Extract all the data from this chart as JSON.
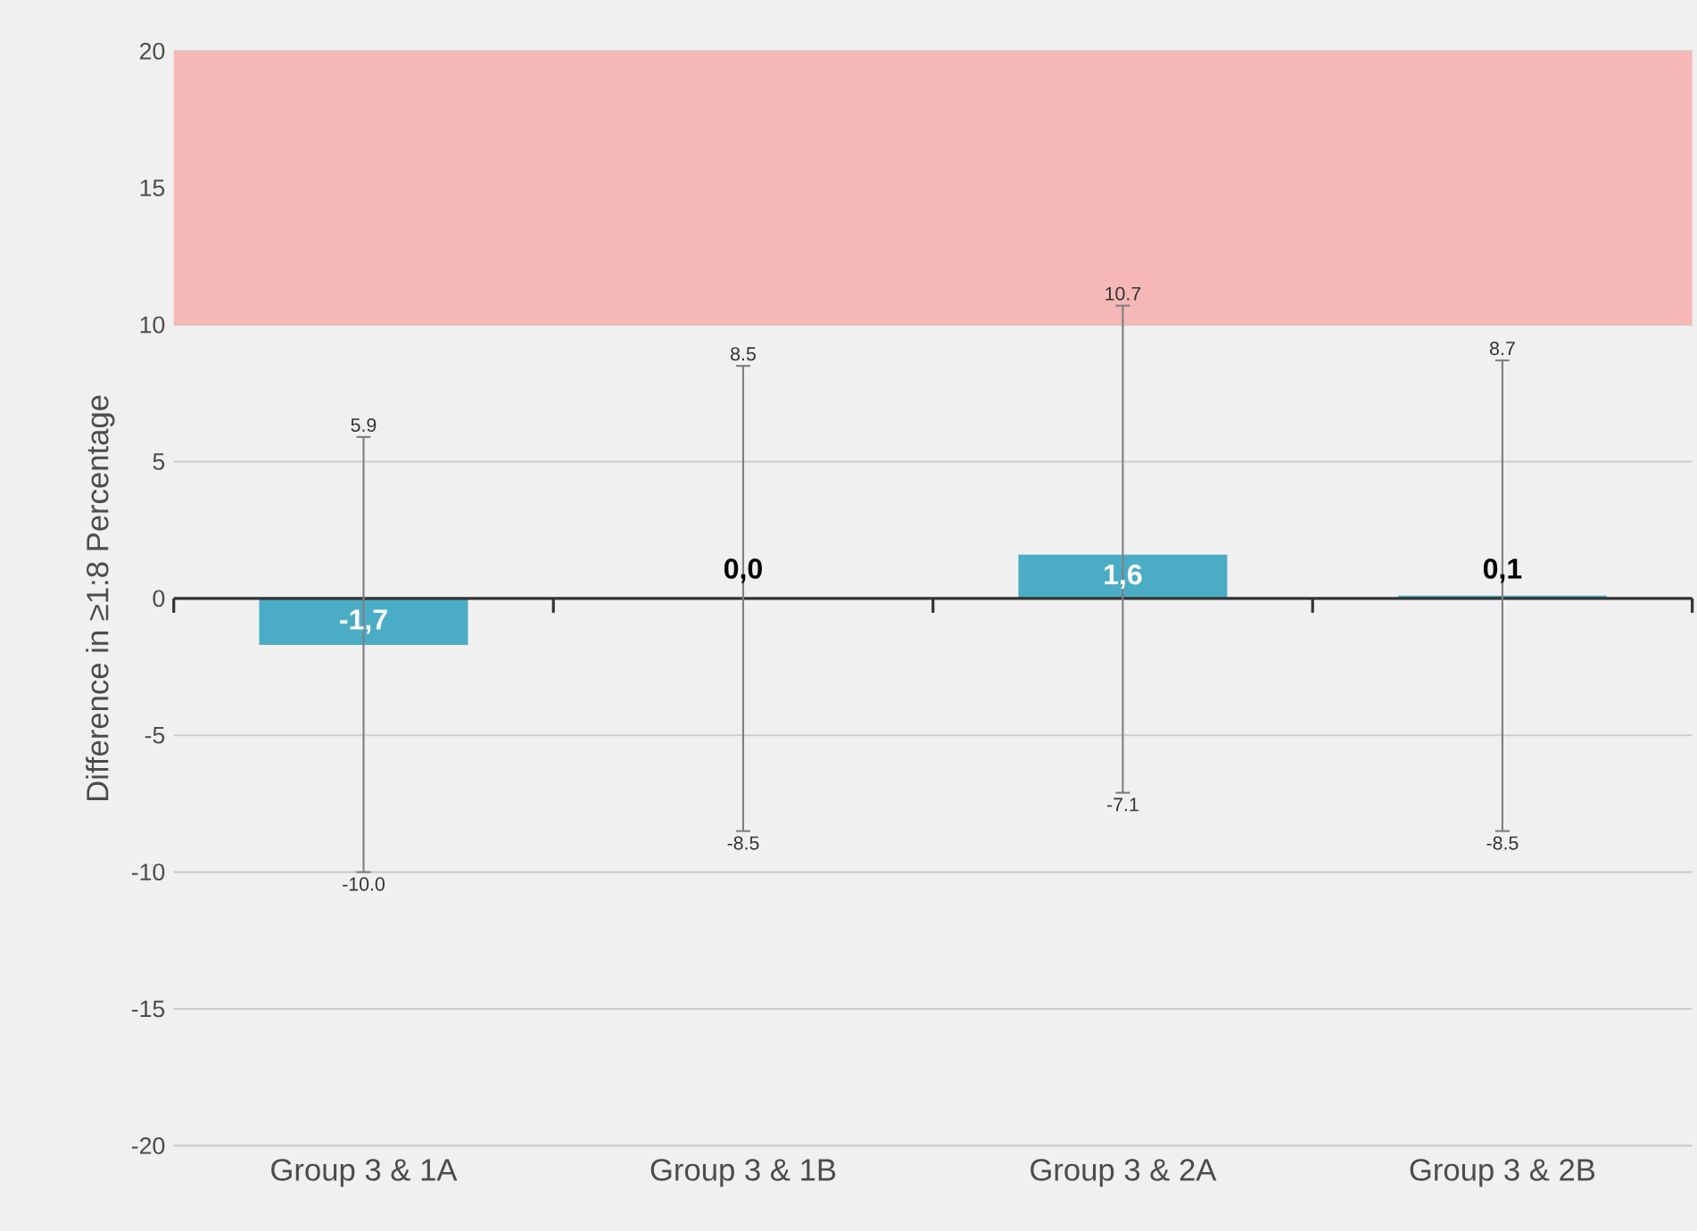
{
  "chart_data": {
    "type": "bar",
    "ylabel": "Difference in ≥1:8 Percentage",
    "categories": [
      "Group 3 & 1A",
      "Group 3 & 1B",
      "Group 3 & 2A",
      "Group 3 & 2B"
    ],
    "values": [
      -1.7,
      0.0,
      1.6,
      0.1
    ],
    "value_labels": [
      "-1,7",
      "0,0",
      "1,6",
      "0,1"
    ],
    "errors": [
      [
        -10.0,
        5.9
      ],
      [
        -8.5,
        8.5
      ],
      [
        -7.1,
        10.7
      ],
      [
        -8.5,
        8.7
      ]
    ],
    "color": "#4bacc6",
    "ylim": [
      -20,
      20
    ],
    "yticks": [
      -20,
      -15,
      -10,
      -5,
      0,
      5,
      10,
      15,
      20
    ],
    "grid": "y",
    "bands": [
      {
        "axis": "y",
        "from": 10,
        "to": 20,
        "color": "#f6b7b7"
      }
    ],
    "annotations": [
      {
        "text": "5.9",
        "x": "Group 3 & 1A",
        "y": 5.9
      },
      {
        "text": "-10.0",
        "x": "Group 3 & 1A",
        "y": -10.0
      },
      {
        "text": "8.5",
        "x": "Group 3 & 1B",
        "y": 8.5
      },
      {
        "text": "-8.5",
        "x": "Group 3 & 1B",
        "y": -8.5
      },
      {
        "text": "10.7",
        "x": "Group 3 & 2A",
        "y": 10.7
      },
      {
        "text": "-7.1",
        "x": "Group 3 & 2A",
        "y": -7.1
      },
      {
        "text": "8.7",
        "x": "Group 3 & 2B",
        "y": 8.7
      },
      {
        "text": "-8.5",
        "x": "Group 3 & 2B",
        "y": -8.5
      }
    ]
  }
}
